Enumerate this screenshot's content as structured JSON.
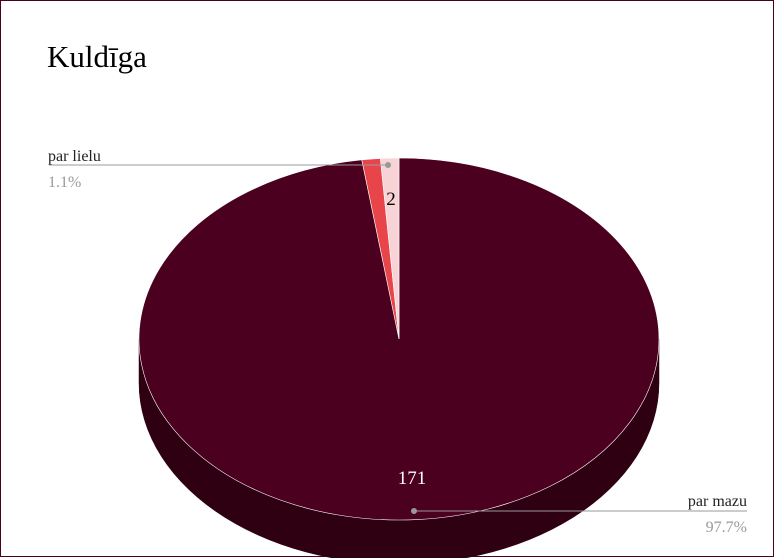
{
  "chart_data": {
    "type": "pie",
    "title": "Kuldīga",
    "slices": [
      {
        "label": "par mazu",
        "value": 171,
        "percent": "97.7%",
        "color": "#4c0020",
        "side_color": "#2e0012",
        "value_label_color": "#ffffff"
      },
      {
        "label": "",
        "value": 2,
        "percent": "",
        "color": "#e8454a",
        "side_color": "#b52f33",
        "value_label_color": "#000000"
      },
      {
        "label": "par lielu",
        "value": 2,
        "percent": "1.1%",
        "color": "#f8d3d6",
        "side_color": "#d9aeb1",
        "value_label_color": "#000000"
      }
    ],
    "value_labels": [
      "171",
      "2",
      ""
    ],
    "three_d": true,
    "legend": "none"
  }
}
